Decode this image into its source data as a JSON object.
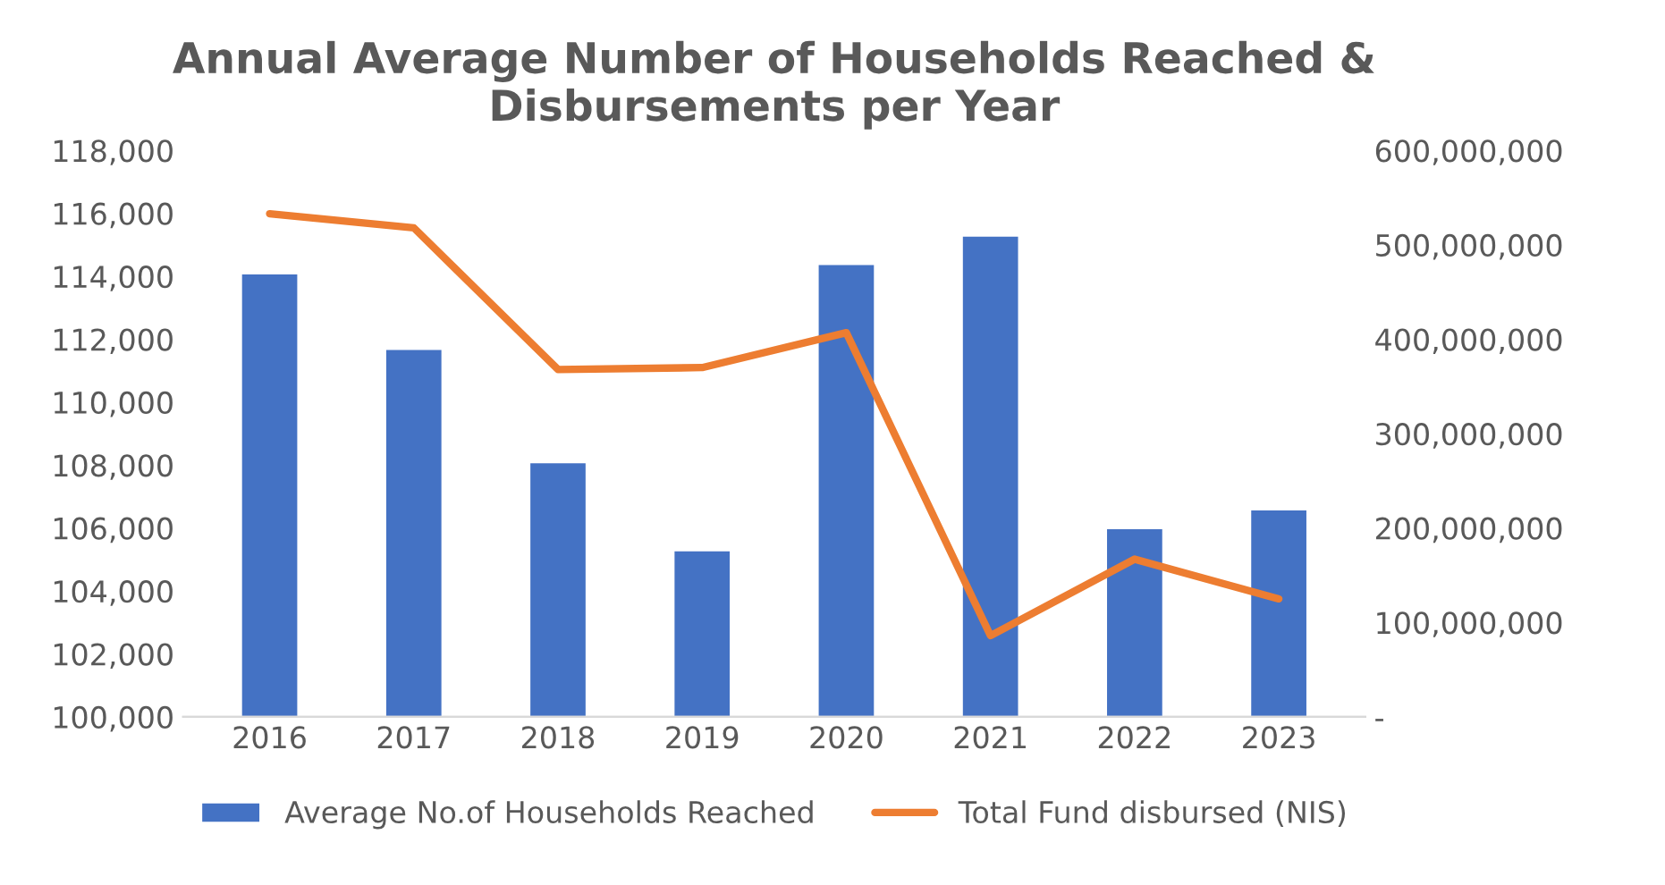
{
  "chart_data": {
    "type": "bar",
    "title": "Annual Average Number of Households Reached &\nDisbursements per Year",
    "categories": [
      "2016",
      "2017",
      "2018",
      "2019",
      "2020",
      "2021",
      "2022",
      "2023"
    ],
    "series": [
      {
        "name": "Average No.of Households Reached",
        "color": "#4472c4",
        "values": [
          114100,
          111700,
          108100,
          105300,
          114400,
          115300,
          106000,
          106600
        ]
      },
      {
        "name": "Total Fund disbursed (NIS)",
        "type": "line",
        "axis": "y2",
        "color": "#ed7d31",
        "values": [
          533000000,
          518000000,
          368000000,
          370000000,
          407000000,
          86000000,
          167000000,
          125000000
        ]
      }
    ],
    "ylim": [
      100000,
      118000
    ],
    "yticks": [
      {
        "value": 100000,
        "label": "100,000"
      },
      {
        "value": 102000,
        "label": "102,000"
      },
      {
        "value": 104000,
        "label": "104,000"
      },
      {
        "value": 106000,
        "label": "106,000"
      },
      {
        "value": 108000,
        "label": "108,000"
      },
      {
        "value": 110000,
        "label": "110,000"
      },
      {
        "value": 112000,
        "label": "112,000"
      },
      {
        "value": 114000,
        "label": "114,000"
      },
      {
        "value": 116000,
        "label": "116,000"
      },
      {
        "value": 118000,
        "label": "118,000"
      }
    ],
    "y2lim": [
      0,
      600000000
    ],
    "y2ticks": [
      {
        "value": 0,
        "label": "-"
      },
      {
        "value": 100000000,
        "label": "100,000,000"
      },
      {
        "value": 200000000,
        "label": "200,000,000"
      },
      {
        "value": 300000000,
        "label": "300,000,000"
      },
      {
        "value": 400000000,
        "label": "400,000,000"
      },
      {
        "value": 500000000,
        "label": "500,000,000"
      },
      {
        "value": 600000000,
        "label": "600,000,000"
      }
    ],
    "legend": "bottom",
    "grid": false
  }
}
